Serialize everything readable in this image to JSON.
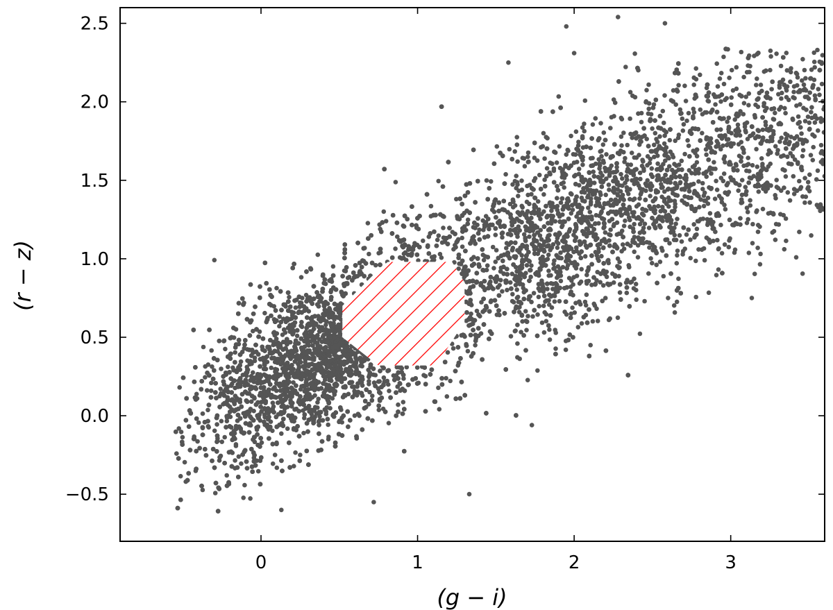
{
  "chart_data": {
    "type": "scatter",
    "title": "",
    "xlabel": "(g − i)",
    "ylabel": "(r − z)",
    "xlim": [
      -0.9,
      3.6
    ],
    "ylim": [
      -0.8,
      2.6
    ],
    "x_ticks": [
      0,
      1,
      2,
      3
    ],
    "x_tick_labels": [
      "0",
      "1",
      "2",
      "3"
    ],
    "y_ticks": [
      -0.5,
      0.0,
      0.5,
      1.0,
      1.5,
      2.0,
      2.5
    ],
    "y_tick_labels": [
      "−0.5",
      "0.0",
      "0.5",
      "1.0",
      "1.5",
      "2.0",
      "2.5"
    ],
    "grid": false,
    "legend": "none",
    "tick_direction": "in",
    "point_color": "#555555",
    "hatch_color": "#ff0000",
    "excluded_region": {
      "shape": "octagon",
      "polygon": [
        [
          0.81,
          0.98
        ],
        [
          1.22,
          0.98
        ],
        [
          1.3,
          0.85
        ],
        [
          1.3,
          0.6
        ],
        [
          1.12,
          0.32
        ],
        [
          0.75,
          0.32
        ],
        [
          0.52,
          0.5
        ],
        [
          0.52,
          0.7
        ],
        [
          0.76,
          0.94
        ]
      ]
    },
    "distribution": {
      "description_values": "dense correlated cloud",
      "core_center": [
        0.35,
        0.35
      ],
      "trend_slope": 0.55,
      "x_range": [
        -0.55,
        3.6
      ],
      "y_range": [
        -0.62,
        2.55
      ]
    },
    "outliers": [
      [
        1.95,
        2.48
      ],
      [
        2.28,
        2.54
      ],
      [
        2.58,
        2.5
      ],
      [
        2.0,
        2.31
      ],
      [
        0.72,
        -0.55
      ],
      [
        0.13,
        -0.6
      ],
      [
        -0.52,
        0.18
      ],
      [
        -0.48,
        -0.42
      ],
      [
        3.6,
        1.88
      ],
      [
        1.73,
        -0.06
      ],
      [
        2.45,
        0.73
      ],
      [
        2.6,
        0.75
      ],
      [
        1.33,
        -0.5
      ],
      [
        1.58,
        2.25
      ]
    ]
  }
}
